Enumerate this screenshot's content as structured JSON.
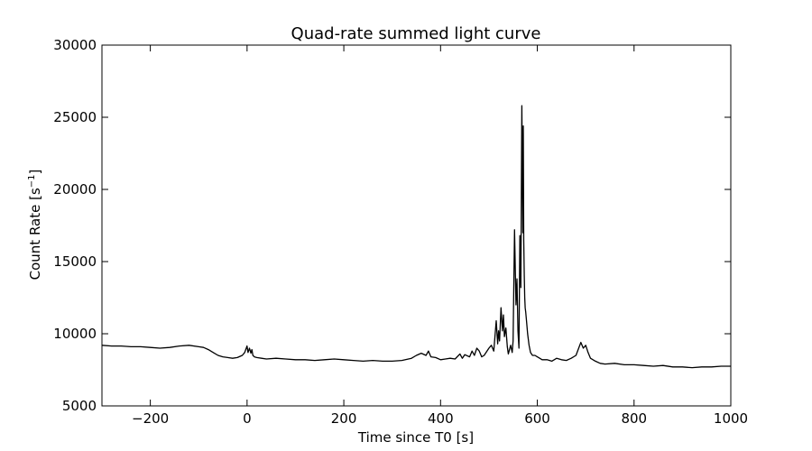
{
  "chart_data": {
    "type": "line",
    "title": "Quad-rate summed light curve",
    "xlabel": "Time since T0 [s]",
    "ylabel": "Count Rate [s",
    "ylabel_sup": "−1",
    "ylabel_end": "]",
    "xlim": [
      -300,
      1000
    ],
    "ylim": [
      5000,
      30000
    ],
    "xticks": [
      -200,
      0,
      200,
      400,
      600,
      800,
      1000
    ],
    "xtick_labels": [
      "−200",
      "0",
      "200",
      "400",
      "600",
      "800",
      "1000"
    ],
    "yticks": [
      5000,
      10000,
      15000,
      20000,
      25000,
      30000
    ],
    "ytick_labels": [
      "5000",
      "10000",
      "15000",
      "20000",
      "25000",
      "30000"
    ],
    "grid": false,
    "line_color": "#000000",
    "series": [
      {
        "x": [
          -300,
          -280,
          -260,
          -240,
          -220,
          -200,
          -180,
          -160,
          -140,
          -120,
          -100,
          -90,
          -80,
          -70,
          -60,
          -50,
          -40,
          -30,
          -20,
          -10,
          -5,
          0,
          2,
          5,
          8,
          10,
          12,
          15,
          20,
          30,
          40,
          60,
          80,
          100,
          120,
          140,
          160,
          180,
          200,
          220,
          240,
          260,
          280,
          300,
          320,
          340,
          350,
          360,
          370,
          375,
          380,
          390,
          400,
          410,
          420,
          430,
          440,
          445,
          450,
          460,
          465,
          470,
          475,
          480,
          485,
          490,
          500,
          505,
          510,
          515,
          518,
          520,
          522,
          525,
          528,
          530,
          532,
          535,
          538,
          540,
          545,
          548,
          550,
          553,
          556,
          558,
          560,
          562,
          564,
          566,
          568,
          570,
          571,
          572,
          573,
          574,
          575,
          576,
          578,
          580,
          583,
          586,
          590,
          595,
          600,
          610,
          620,
          630,
          640,
          650,
          660,
          670,
          680,
          690,
          695,
          700,
          705,
          710,
          720,
          730,
          740,
          760,
          780,
          800,
          820,
          840,
          860,
          880,
          900,
          920,
          940,
          960,
          980,
          1000
        ],
        "y": [
          9200,
          9150,
          9150,
          9100,
          9100,
          9050,
          9000,
          9050,
          9150,
          9200,
          9100,
          9050,
          8900,
          8700,
          8500,
          8400,
          8350,
          8300,
          8350,
          8500,
          8700,
          9150,
          8700,
          9000,
          8650,
          8900,
          8500,
          8400,
          8350,
          8300,
          8250,
          8300,
          8250,
          8200,
          8200,
          8150,
          8200,
          8250,
          8200,
          8150,
          8100,
          8150,
          8100,
          8100,
          8150,
          8300,
          8500,
          8650,
          8500,
          8800,
          8400,
          8350,
          8200,
          8250,
          8300,
          8250,
          8600,
          8300,
          8550,
          8400,
          8800,
          8500,
          9000,
          8800,
          8400,
          8500,
          9000,
          9200,
          8800,
          10900,
          9300,
          10200,
          9500,
          11800,
          10200,
          11300,
          9800,
          10400,
          9100,
          8600,
          9200,
          8700,
          9500,
          17200,
          12000,
          13800,
          10200,
          9000,
          16800,
          13200,
          25800,
          17000,
          24400,
          16500,
          14000,
          12500,
          11800,
          11500,
          10800,
          10000,
          9200,
          8700,
          8500,
          8500,
          8400,
          8200,
          8200,
          8100,
          8300,
          8200,
          8150,
          8300,
          8500,
          9400,
          9000,
          9200,
          8700,
          8300,
          8100,
          7950,
          7900,
          7950,
          7850,
          7850,
          7800,
          7750,
          7800,
          7700,
          7700,
          7650,
          7700,
          7700,
          7750,
          7750
        ]
      }
    ]
  }
}
